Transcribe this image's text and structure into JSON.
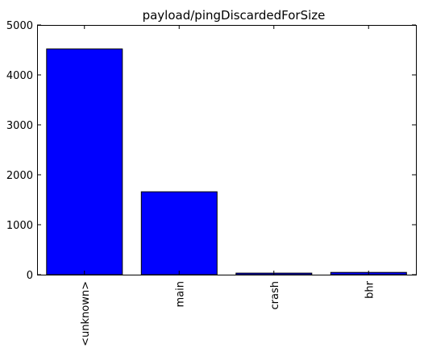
{
  "chart_data": {
    "type": "bar",
    "title": "payload/pingDiscardedForSize",
    "xlabel": "",
    "ylabel": "",
    "categories": [
      "<unknown>",
      "main",
      "crash",
      "bhr"
    ],
    "values": [
      4520,
      1660,
      30,
      45
    ],
    "ylim": [
      0,
      5000
    ],
    "yticks": [
      0,
      1000,
      2000,
      3000,
      4000,
      5000
    ],
    "bar_color": "#0000ff",
    "edge_color": "#000000",
    "grid": false,
    "legend": "none"
  }
}
